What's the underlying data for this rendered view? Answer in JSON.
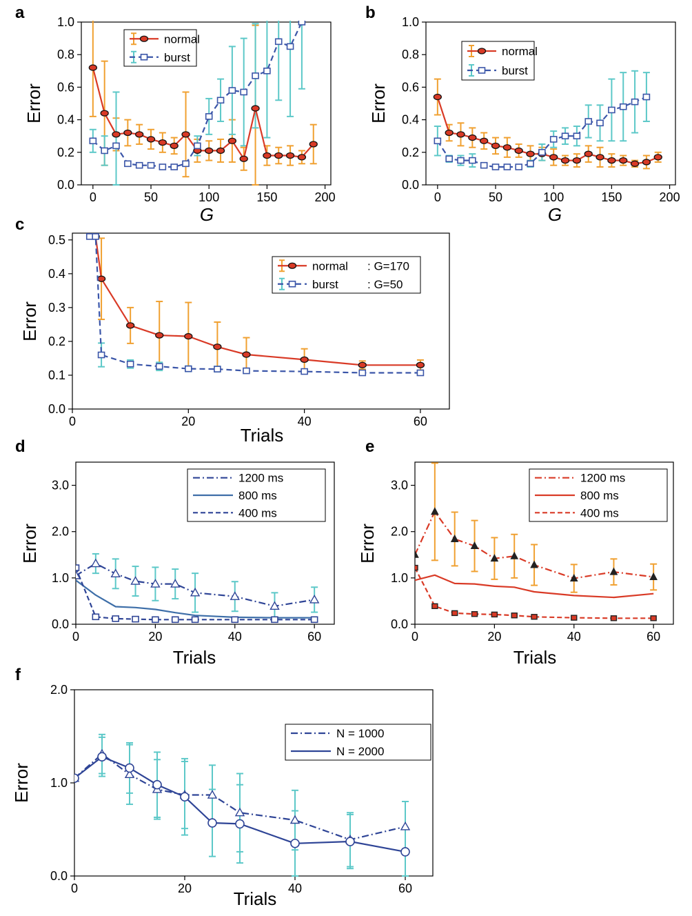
{
  "colors": {
    "normal": "#d93a26",
    "burst": "#3a55a8",
    "err_orange": "#f0a030",
    "err_cyan": "#5cc8c8",
    "marker_dark": "#222222",
    "darkblue": "#2e4496",
    "midblue": "#3d6ea8"
  },
  "chart_data": [
    {
      "panel": "a",
      "type": "line",
      "xlabel": "G",
      "ylabel": "Error",
      "xlim": [
        -10,
        205
      ],
      "ylim": [
        0,
        1.0
      ],
      "xticks": [
        "0",
        "50",
        "100",
        "150",
        "200"
      ],
      "xtick_values": [
        0,
        50,
        100,
        150,
        200
      ],
      "yticks": [
        "0.0",
        "0.2",
        "0.4",
        "0.6",
        "0.8",
        "1.0"
      ],
      "ytick_values": [
        0,
        0.2,
        0.4,
        0.6,
        0.8,
        1.0
      ],
      "legend": "top-left",
      "series": [
        {
          "name": "normal",
          "style": "solid",
          "marker": "circle",
          "x": [
            0,
            10,
            20,
            30,
            40,
            50,
            60,
            70,
            80,
            90,
            100,
            110,
            120,
            130,
            140,
            150,
            160,
            170,
            180,
            190
          ],
          "y": [
            0.72,
            0.44,
            0.31,
            0.32,
            0.31,
            0.28,
            0.26,
            0.24,
            0.31,
            0.21,
            0.21,
            0.21,
            0.27,
            0.16,
            0.47,
            0.18,
            0.18,
            0.18,
            0.17,
            0.25
          ],
          "err": [
            0.3,
            0.32,
            0.1,
            0.08,
            0.06,
            0.06,
            0.06,
            0.05,
            0.26,
            0.07,
            0.06,
            0.07,
            0.13,
            0.07,
            0.51,
            0.06,
            0.05,
            0.06,
            0.04,
            0.12
          ]
        },
        {
          "name": "burst",
          "style": "dashed",
          "marker": "square",
          "x": [
            0,
            10,
            20,
            30,
            40,
            50,
            60,
            70,
            80,
            90,
            100,
            110,
            120,
            130,
            140,
            150,
            160,
            170,
            180
          ],
          "y": [
            0.27,
            0.21,
            0.24,
            0.13,
            0.12,
            0.12,
            0.11,
            0.11,
            0.13,
            0.24,
            0.42,
            0.52,
            0.58,
            0.57,
            0.67,
            0.7,
            0.88,
            0.85,
            1.0
          ],
          "err": [
            0.07,
            0.09,
            0.33,
            0.0,
            0.0,
            0.0,
            0.0,
            0.0,
            0.0,
            0.06,
            0.11,
            0.13,
            0.27,
            0.33,
            0.32,
            0.41,
            0.36,
            0.43,
            0.41
          ]
        }
      ]
    },
    {
      "panel": "b",
      "type": "line",
      "xlabel": "G",
      "ylabel": "Error",
      "xlim": [
        -10,
        205
      ],
      "ylim": [
        0,
        1.0
      ],
      "xticks": [
        "0",
        "50",
        "100",
        "150",
        "200"
      ],
      "xtick_values": [
        0,
        50,
        100,
        150,
        200
      ],
      "yticks": [
        "0.0",
        "0.2",
        "0.4",
        "0.6",
        "0.8",
        "1.0"
      ],
      "ytick_values": [
        0,
        0.2,
        0.4,
        0.6,
        0.8,
        1.0
      ],
      "legend": "top-left",
      "series": [
        {
          "name": "normal",
          "style": "solid",
          "marker": "circle",
          "x": [
            0,
            10,
            20,
            30,
            40,
            50,
            60,
            70,
            80,
            90,
            100,
            110,
            120,
            130,
            140,
            150,
            160,
            170,
            180,
            190
          ],
          "y": [
            0.54,
            0.32,
            0.31,
            0.29,
            0.27,
            0.24,
            0.23,
            0.21,
            0.19,
            0.19,
            0.17,
            0.15,
            0.15,
            0.19,
            0.17,
            0.15,
            0.15,
            0.13,
            0.14,
            0.17
          ],
          "err": [
            0.11,
            0.05,
            0.07,
            0.06,
            0.05,
            0.05,
            0.06,
            0.04,
            0.05,
            0.04,
            0.05,
            0.03,
            0.04,
            0.05,
            0.06,
            0.04,
            0.03,
            0.02,
            0.04,
            0.03
          ]
        },
        {
          "name": "burst",
          "style": "dashed",
          "marker": "square",
          "x": [
            0,
            10,
            20,
            30,
            40,
            50,
            60,
            70,
            80,
            90,
            100,
            110,
            120,
            130,
            140,
            150,
            160,
            170,
            180
          ],
          "y": [
            0.27,
            0.16,
            0.15,
            0.15,
            0.12,
            0.11,
            0.11,
            0.11,
            0.13,
            0.2,
            0.28,
            0.3,
            0.3,
            0.39,
            0.38,
            0.46,
            0.48,
            0.51,
            0.54
          ],
          "err": [
            0.09,
            0.02,
            0.03,
            0.04,
            0.01,
            0.01,
            0.01,
            0.01,
            0.02,
            0.05,
            0.05,
            0.05,
            0.06,
            0.1,
            0.11,
            0.19,
            0.21,
            0.19,
            0.15
          ]
        }
      ]
    },
    {
      "panel": "c",
      "type": "line",
      "xlabel": "Trials",
      "ylabel": "Error",
      "xlim": [
        0,
        65
      ],
      "ylim": [
        0,
        0.52
      ],
      "xticks": [
        "0",
        "20",
        "40",
        "60"
      ],
      "xtick_values": [
        0,
        20,
        40,
        60
      ],
      "yticks": [
        "0.0",
        "0.1",
        "0.2",
        "0.3",
        "0.4",
        "0.5"
      ],
      "ytick_values": [
        0,
        0.1,
        0.2,
        0.3,
        0.4,
        0.5
      ],
      "legend": "top-right",
      "series": [
        {
          "name": "normal",
          "param": ": G=170",
          "style": "solid",
          "marker": "circle",
          "x": [
            4,
            5,
            10,
            15,
            20,
            25,
            30,
            40,
            50,
            60
          ],
          "y": [
            0.51,
            0.385,
            0.247,
            0.218,
            0.215,
            0.184,
            0.161,
            0.146,
            0.13,
            0.13
          ],
          "err": [
            0.0,
            0.12,
            0.053,
            0.1,
            0.1,
            0.073,
            0.05,
            0.032,
            0.012,
            0.015
          ]
        },
        {
          "name": "burst",
          "param": ": G=50",
          "style": "dashed",
          "marker": "square",
          "x": [
            3,
            4,
            5,
            10,
            15,
            20,
            25,
            30,
            40,
            50,
            60
          ],
          "y": [
            0.51,
            0.51,
            0.16,
            0.133,
            0.126,
            0.119,
            0.118,
            0.113,
            0.111,
            0.107,
            0.107
          ],
          "err": [
            0.0,
            0.0,
            0.035,
            0.012,
            0.012,
            0.008,
            0.008,
            0.005,
            0.005,
            0.005,
            0.005
          ]
        }
      ]
    },
    {
      "panel": "d",
      "type": "line",
      "xlabel": "Trials",
      "ylabel": "Error",
      "xlim": [
        0,
        65
      ],
      "ylim": [
        0,
        3.5
      ],
      "xticks": [
        "0",
        "20",
        "40",
        "60"
      ],
      "xtick_values": [
        0,
        20,
        40,
        60
      ],
      "yticks": [
        "0.0",
        "1.0",
        "2.0",
        "3.0"
      ],
      "ytick_values": [
        0,
        1,
        2,
        3
      ],
      "legend": "top-right",
      "series": [
        {
          "name": "1200 ms",
          "style": "dashdot",
          "marker": "triangle",
          "x": [
            0,
            5,
            10,
            15,
            20,
            25,
            30,
            40,
            50,
            60
          ],
          "y": [
            1.05,
            1.31,
            1.09,
            0.93,
            0.87,
            0.87,
            0.68,
            0.6,
            0.39,
            0.53
          ],
          "err": [
            0.0,
            0.21,
            0.32,
            0.32,
            0.36,
            0.32,
            0.42,
            0.32,
            0.29,
            0.27
          ]
        },
        {
          "name": "800 ms",
          "style": "solid",
          "marker": "none",
          "x": [
            0,
            5,
            10,
            15,
            20,
            25,
            30,
            40,
            50,
            60
          ],
          "y": [
            0.95,
            0.63,
            0.38,
            0.36,
            0.32,
            0.25,
            0.19,
            0.15,
            0.14,
            0.14
          ],
          "err": [
            0,
            0,
            0,
            0,
            0,
            0,
            0,
            0,
            0,
            0
          ]
        },
        {
          "name": "400 ms",
          "style": "dashed",
          "marker": "square",
          "x": [
            0,
            5,
            10,
            15,
            20,
            25,
            30,
            40,
            50,
            60
          ],
          "y": [
            1.22,
            0.16,
            0.12,
            0.11,
            0.1,
            0.1,
            0.1,
            0.1,
            0.1,
            0.1
          ],
          "err": [
            0,
            0,
            0,
            0,
            0,
            0,
            0,
            0,
            0,
            0
          ]
        }
      ]
    },
    {
      "panel": "e",
      "type": "line",
      "xlabel": "Trials",
      "ylabel": "Error",
      "xlim": [
        0,
        65
      ],
      "ylim": [
        0,
        3.5
      ],
      "xticks": [
        "0",
        "20",
        "40",
        "60"
      ],
      "xtick_values": [
        0,
        20,
        40,
        60
      ],
      "yticks": [
        "0.0",
        "1.0",
        "2.0",
        "3.0"
      ],
      "ytick_values": [
        0,
        1,
        2,
        3
      ],
      "legend": "top-right",
      "series": [
        {
          "name": "1200 ms",
          "style": "dashdot",
          "marker": "triangle",
          "x": [
            0,
            5,
            10,
            15,
            20,
            25,
            30,
            40,
            50,
            60
          ],
          "y": [
            1.5,
            2.43,
            1.84,
            1.69,
            1.42,
            1.47,
            1.28,
            0.99,
            1.13,
            1.02
          ],
          "err": [
            0.0,
            1.05,
            0.58,
            0.55,
            0.45,
            0.47,
            0.44,
            0.3,
            0.28,
            0.28
          ]
        },
        {
          "name": "800 ms",
          "style": "solid",
          "marker": "none",
          "x": [
            0,
            5,
            10,
            15,
            20,
            25,
            30,
            40,
            50,
            60
          ],
          "y": [
            0.95,
            1.06,
            0.88,
            0.87,
            0.82,
            0.8,
            0.7,
            0.62,
            0.58,
            0.66
          ],
          "err": [
            0,
            0,
            0,
            0,
            0,
            0,
            0,
            0,
            0,
            0
          ]
        },
        {
          "name": "400 ms",
          "style": "dashed",
          "marker": "square",
          "x": [
            0,
            5,
            10,
            15,
            20,
            25,
            30,
            40,
            50,
            60
          ],
          "y": [
            1.22,
            0.39,
            0.24,
            0.22,
            0.21,
            0.19,
            0.16,
            0.14,
            0.13,
            0.13
          ],
          "err": [
            0,
            0,
            0,
            0,
            0,
            0,
            0,
            0,
            0,
            0
          ]
        }
      ]
    },
    {
      "panel": "f",
      "type": "line",
      "xlabel": "Trials",
      "ylabel": "Error",
      "xlim": [
        0,
        65
      ],
      "ylim": [
        0,
        2.0
      ],
      "xticks": [
        "0",
        "20",
        "40",
        "60"
      ],
      "xtick_values": [
        0,
        20,
        40,
        60
      ],
      "yticks": [
        "0.0",
        "1.0",
        "2.0"
      ],
      "ytick_values": [
        0,
        1,
        2
      ],
      "legend": "top-right",
      "series": [
        {
          "name": "N = 1000",
          "style": "dashdot",
          "marker": "triangle",
          "x": [
            0,
            5,
            10,
            15,
            20,
            25,
            30,
            40,
            50,
            60
          ],
          "y": [
            1.05,
            1.31,
            1.09,
            0.93,
            0.87,
            0.87,
            0.68,
            0.6,
            0.39,
            0.53
          ],
          "err": [
            0.0,
            0.21,
            0.32,
            0.32,
            0.36,
            0.32,
            0.42,
            0.32,
            0.29,
            0.27
          ]
        },
        {
          "name": "N = 2000",
          "style": "solid",
          "marker": "circle",
          "x": [
            0,
            5,
            10,
            15,
            20,
            25,
            30,
            40,
            50,
            60
          ],
          "y": [
            1.05,
            1.28,
            1.16,
            0.98,
            0.85,
            0.57,
            0.56,
            0.35,
            0.37,
            0.26
          ],
          "err": [
            0.0,
            0.21,
            0.27,
            0.35,
            0.41,
            0.36,
            0.42,
            0.35,
            0.29,
            0.26
          ]
        }
      ]
    }
  ]
}
